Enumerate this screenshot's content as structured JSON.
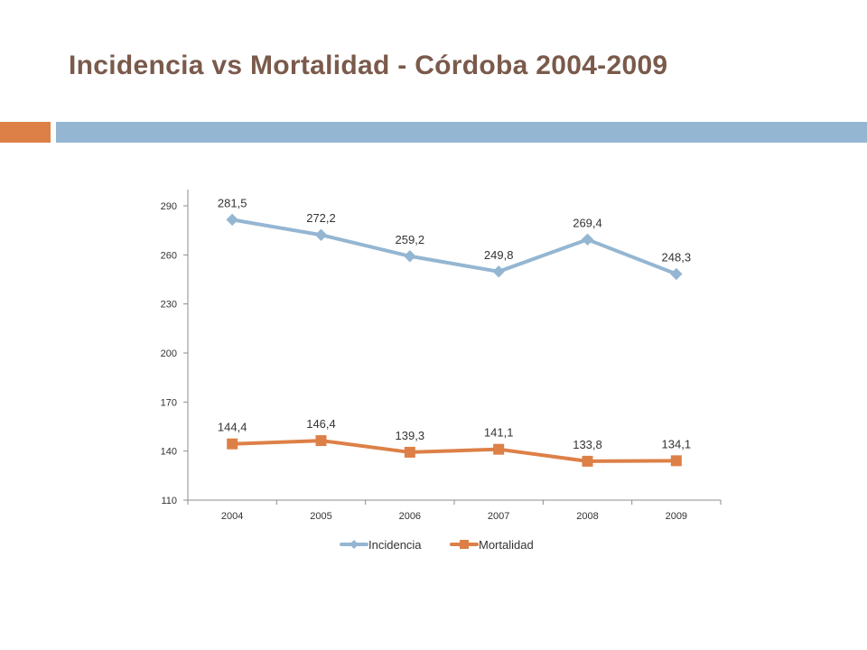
{
  "title": "Incidencia vs Mortalidad - Córdoba 2004-2009",
  "colors": {
    "title": "#7a5a4b",
    "accent_orange": "#dd8047",
    "accent_blue": "#94b6d2",
    "incidencia": "#94b6d2",
    "mortalidad": "#dd8047"
  },
  "chart_data": {
    "type": "line",
    "categories": [
      "2004",
      "2005",
      "2006",
      "2007",
      "2008",
      "2009"
    ],
    "series": [
      {
        "name": "Incidencia",
        "values": [
          281.5,
          272.2,
          259.2,
          249.8,
          269.4,
          248.3
        ],
        "labels": [
          "281,5",
          "272,2",
          "259,2",
          "249,8",
          "269,4",
          "248,3"
        ],
        "marker": "diamond",
        "color": "#94b6d2"
      },
      {
        "name": "Mortalidad",
        "values": [
          144.4,
          146.4,
          139.3,
          141.1,
          133.8,
          134.1
        ],
        "labels": [
          "144,4",
          "146,4",
          "139,3",
          "141,1",
          "133,8",
          "134,1"
        ],
        "marker": "square",
        "color": "#dd8047"
      }
    ],
    "ylim": [
      110,
      290
    ],
    "yticks": [
      110,
      140,
      170,
      200,
      230,
      260,
      290
    ],
    "grid": false,
    "legend": "bottom",
    "xlabel": "",
    "ylabel": ""
  }
}
